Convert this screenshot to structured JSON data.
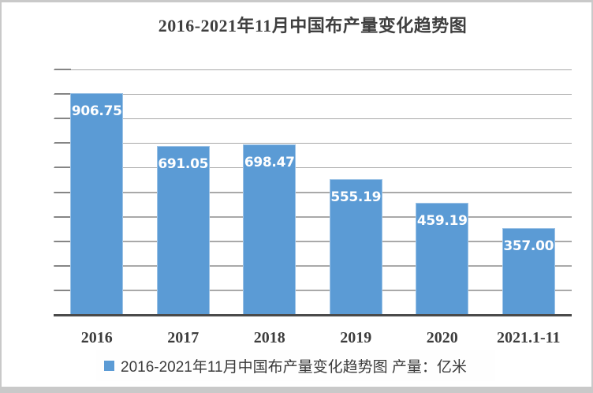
{
  "colors": {
    "bar_fill": "#5b9bd5",
    "bar_border": "#9dc3e6",
    "gridline": "#a9a9a9",
    "tick": "#858585",
    "axis_line": "#4a4a4a",
    "title_text": "#3f3f3f",
    "value_label_text": "#ffffff",
    "frame_edge": "#c9c9c9",
    "legend_background": "#fefefe"
  },
  "chart_data": {
    "type": "bar",
    "title": "2016-2021年11月中国布产量变化趋势图",
    "categories": [
      "2016",
      "2017",
      "2018",
      "2019",
      "2020",
      "2021.1-11"
    ],
    "values": [
      906.75,
      691.05,
      698.47,
      555.19,
      459.19,
      357.0
    ],
    "value_labels": [
      "906.75",
      "691.05",
      "698.47",
      "555.19",
      "459.19",
      "357.00"
    ],
    "xlabel": "",
    "ylabel": "",
    "ylim": [
      0,
      1000
    ],
    "gridline_step": 100,
    "grid": true,
    "y_tick_labels_shown": false,
    "legend_position": "bottom",
    "legend_label": "2016-2021年11月中国布产量变化趋势图 产量：亿米",
    "unit": "亿米"
  }
}
